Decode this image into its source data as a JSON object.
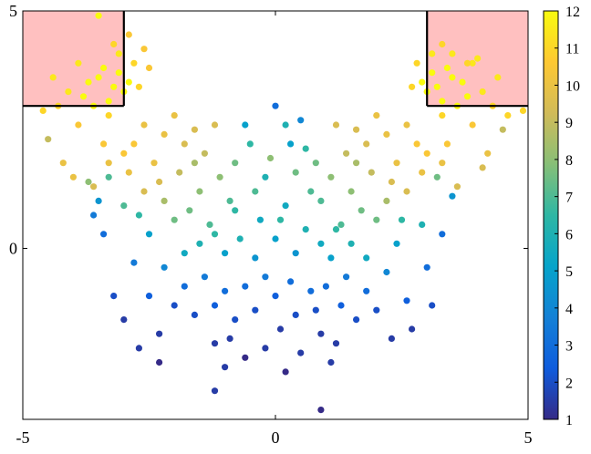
{
  "chart_data": {
    "type": "scatter",
    "title": "",
    "xlabel": "",
    "ylabel": "",
    "xlim": [
      -5,
      5
    ],
    "ylim": [
      -3.6,
      5
    ],
    "xticks": [
      -5,
      0,
      5
    ],
    "yticks": [
      0,
      5
    ],
    "xtick_labels": [
      "-5",
      "0",
      "5"
    ],
    "ytick_labels": [
      "0",
      "5"
    ],
    "grid": false,
    "regions": [
      {
        "x": [
          -5,
          -3
        ],
        "y": [
          3,
          5
        ],
        "fill": "#ffc0c0",
        "edge": "#000000"
      },
      {
        "x": [
          3,
          5
        ],
        "y": [
          3,
          5
        ],
        "fill": "#ffc0c0",
        "edge": "#000000"
      }
    ],
    "colorbar": {
      "min": 1,
      "max": 12,
      "ticks": [
        1,
        2,
        3,
        4,
        5,
        6,
        7,
        8,
        9,
        10,
        11,
        12
      ],
      "tick_labels": [
        "1",
        "2",
        "3",
        "4",
        "5",
        "6",
        "7",
        "8",
        "9",
        "10",
        "11",
        "12"
      ],
      "colormap": "parula",
      "colormap_stops": [
        "#352a87",
        "#0f5cdd",
        "#1481d6",
        "#06a4ca",
        "#2eb7a4",
        "#87bf77",
        "#d1bb59",
        "#fec832",
        "#f9fb0e"
      ]
    },
    "points": [
      [
        -3.2,
        3.4,
        12
      ],
      [
        -3.5,
        3.6,
        12
      ],
      [
        -3.0,
        3.3,
        12
      ],
      [
        -3.8,
        3.2,
        12
      ],
      [
        -3.4,
        3.8,
        12
      ],
      [
        -2.9,
        3.5,
        12
      ],
      [
        -3.6,
        3.0,
        12
      ],
      [
        -3.3,
        3.1,
        12
      ],
      [
        -3.7,
        3.5,
        12
      ],
      [
        -3.1,
        3.7,
        12
      ],
      [
        -4.1,
        3.3,
        11.5
      ],
      [
        -3.9,
        3.9,
        11.5
      ],
      [
        -4.3,
        3.0,
        11
      ],
      [
        -4.6,
        2.9,
        11
      ],
      [
        -3.1,
        4.1,
        11.5
      ],
      [
        -3.5,
        4.9,
        12
      ],
      [
        -2.8,
        3.9,
        11
      ],
      [
        -2.7,
        3.4,
        11
      ],
      [
        -3.3,
        2.8,
        11
      ],
      [
        -4.4,
        3.6,
        11.5
      ],
      [
        -3.2,
        4.3,
        11
      ],
      [
        -2.9,
        4.5,
        10.5
      ],
      [
        -2.6,
        4.2,
        10.5
      ],
      [
        -2.5,
        3.8,
        10.5
      ],
      [
        3.2,
        3.4,
        12
      ],
      [
        3.5,
        3.6,
        12
      ],
      [
        3.0,
        3.3,
        12
      ],
      [
        3.8,
        3.2,
        12
      ],
      [
        3.4,
        3.8,
        12
      ],
      [
        2.9,
        3.5,
        12
      ],
      [
        3.6,
        3.0,
        12
      ],
      [
        3.3,
        3.1,
        12
      ],
      [
        3.7,
        3.5,
        12
      ],
      [
        3.1,
        3.7,
        12
      ],
      [
        4.1,
        3.3,
        11.5
      ],
      [
        3.9,
        3.9,
        11.5
      ],
      [
        4.3,
        3.0,
        11
      ],
      [
        4.6,
        2.8,
        11
      ],
      [
        3.1,
        4.1,
        11.5
      ],
      [
        3.3,
        4.3,
        11
      ],
      [
        2.8,
        3.9,
        11
      ],
      [
        2.7,
        3.4,
        11
      ],
      [
        3.3,
        2.8,
        11
      ],
      [
        4.4,
        3.6,
        11.5
      ],
      [
        3.8,
        3.9,
        11
      ],
      [
        3.5,
        4.1,
        11.5
      ],
      [
        4.9,
        2.9,
        11
      ],
      [
        4.0,
        4.0,
        11.5
      ],
      [
        -2.6,
        2.6,
        10
      ],
      [
        -2.2,
        2.4,
        10
      ],
      [
        -2.8,
        2.2,
        10.5
      ],
      [
        -2.0,
        2.8,
        10
      ],
      [
        -1.8,
        2.2,
        9.5
      ],
      [
        -2.4,
        1.8,
        10
      ],
      [
        -1.6,
        2.5,
        9.5
      ],
      [
        -2.9,
        1.6,
        10
      ],
      [
        -2.3,
        1.4,
        9.5
      ],
      [
        -1.9,
        1.6,
        9
      ],
      [
        -2.6,
        1.2,
        9.5
      ],
      [
        -3.0,
        2.0,
        10.5
      ],
      [
        -3.3,
        1.8,
        10
      ],
      [
        -3.6,
        1.3,
        9.5
      ],
      [
        -1.4,
        2.0,
        9
      ],
      [
        -1.2,
        2.6,
        9.5
      ],
      [
        2.6,
        2.6,
        10
      ],
      [
        2.2,
        2.4,
        10
      ],
      [
        2.8,
        2.2,
        10.5
      ],
      [
        2.0,
        2.8,
        10
      ],
      [
        1.8,
        2.2,
        9.5
      ],
      [
        2.4,
        1.8,
        10
      ],
      [
        1.6,
        2.5,
        9.5
      ],
      [
        2.9,
        1.6,
        10
      ],
      [
        2.3,
        1.4,
        9.5
      ],
      [
        1.9,
        1.6,
        9
      ],
      [
        2.6,
        1.2,
        9.5
      ],
      [
        3.0,
        2.0,
        10.5
      ],
      [
        3.3,
        1.8,
        10
      ],
      [
        3.6,
        1.3,
        9.5
      ],
      [
        1.4,
        2.0,
        9
      ],
      [
        1.2,
        2.6,
        9.5
      ],
      [
        -1.5,
        1.2,
        8
      ],
      [
        -1.1,
        1.5,
        8
      ],
      [
        -0.8,
        1.8,
        7.5
      ],
      [
        -1.7,
        0.8,
        7.5
      ],
      [
        -1.3,
        0.5,
        7
      ],
      [
        -0.9,
        1.0,
        7
      ],
      [
        -2.0,
        0.6,
        7.5
      ],
      [
        -2.2,
        1.0,
        8.5
      ],
      [
        1.5,
        1.2,
        8
      ],
      [
        1.1,
        1.5,
        8
      ],
      [
        0.8,
        1.8,
        7.5
      ],
      [
        1.7,
        0.8,
        7.5
      ],
      [
        1.3,
        0.5,
        7
      ],
      [
        0.9,
        1.0,
        7
      ],
      [
        2.0,
        0.6,
        7.5
      ],
      [
        2.2,
        1.0,
        8.5
      ],
      [
        -0.5,
        2.2,
        6.5
      ],
      [
        0.2,
        2.6,
        6
      ],
      [
        0.6,
        2.1,
        6.5
      ],
      [
        -0.2,
        1.5,
        6
      ],
      [
        0.0,
        3.0,
        3
      ],
      [
        0.3,
        2.2,
        5
      ],
      [
        -0.6,
        2.6,
        5
      ],
      [
        0.5,
        2.7,
        4
      ],
      [
        -0.3,
        0.6,
        5.5
      ],
      [
        0.2,
        0.9,
        5.5
      ],
      [
        0.6,
        0.4,
        6
      ],
      [
        -0.7,
        0.2,
        6
      ],
      [
        0.0,
        0.2,
        5
      ],
      [
        0.4,
        -0.1,
        4.5
      ],
      [
        -0.4,
        -0.2,
        4.5
      ],
      [
        0.9,
        0.1,
        5.5
      ],
      [
        -1.0,
        -0.1,
        5
      ],
      [
        1.1,
        -0.2,
        5
      ],
      [
        -1.5,
        0.1,
        6
      ],
      [
        1.5,
        0.1,
        6
      ],
      [
        -1.8,
        -0.1,
        5.5
      ],
      [
        1.8,
        -0.2,
        5.5
      ],
      [
        -1.2,
        0.3,
        6.5
      ],
      [
        1.2,
        0.4,
        6.5
      ],
      [
        -0.2,
        -0.6,
        3.5
      ],
      [
        0.3,
        -0.7,
        3
      ],
      [
        -0.6,
        -0.8,
        3
      ],
      [
        0.7,
        -0.9,
        3
      ],
      [
        0.0,
        -1.0,
        2.5
      ],
      [
        -1.0,
        -0.9,
        3
      ],
      [
        1.0,
        -0.8,
        3
      ],
      [
        -1.4,
        -0.6,
        3.5
      ],
      [
        1.4,
        -0.6,
        3.5
      ],
      [
        -0.4,
        -1.3,
        2
      ],
      [
        0.4,
        -1.4,
        2
      ],
      [
        -0.8,
        -1.5,
        2
      ],
      [
        0.8,
        -1.3,
        2
      ],
      [
        0.1,
        -1.7,
        1.5
      ],
      [
        -1.2,
        -1.2,
        2.5
      ],
      [
        1.3,
        -1.2,
        2.5
      ],
      [
        -1.8,
        -0.8,
        3
      ],
      [
        1.8,
        -0.9,
        3
      ],
      [
        -2.2,
        -0.4,
        4
      ],
      [
        2.2,
        -0.5,
        4
      ],
      [
        -0.9,
        -1.9,
        1.5
      ],
      [
        0.9,
        -1.8,
        1.5
      ],
      [
        -0.2,
        -2.1,
        1.5
      ],
      [
        0.5,
        -2.2,
        1.5
      ],
      [
        -1.6,
        -1.4,
        2
      ],
      [
        1.6,
        -1.5,
        2
      ],
      [
        -2.0,
        -1.2,
        2
      ],
      [
        2.0,
        -1.3,
        2
      ],
      [
        -2.5,
        -1.0,
        2.5
      ],
      [
        2.6,
        -1.1,
        2.5
      ],
      [
        -1.2,
        -2.0,
        1.5
      ],
      [
        1.2,
        -2.0,
        1.5
      ],
      [
        -2.3,
        -1.8,
        1.5
      ],
      [
        2.3,
        -1.9,
        1.5
      ],
      [
        -1.0,
        -2.5,
        1.5
      ],
      [
        1.1,
        -2.4,
        1.5
      ],
      [
        -0.6,
        -2.3,
        1
      ],
      [
        0.2,
        -2.6,
        1
      ],
      [
        -1.2,
        -3.0,
        1.5
      ],
      [
        0.9,
        -3.4,
        1
      ],
      [
        -2.3,
        -2.4,
        1
      ],
      [
        -2.7,
        -2.1,
        1.5
      ],
      [
        2.7,
        -1.7,
        1.5
      ],
      [
        3.1,
        -1.2,
        2
      ],
      [
        -3.2,
        -1.0,
        2
      ],
      [
        -3.0,
        -1.5,
        1.5
      ],
      [
        3.3,
        0.3,
        3
      ],
      [
        -3.4,
        0.3,
        3
      ],
      [
        -3.5,
        1.0,
        4.5
      ],
      [
        3.5,
        1.1,
        4.5
      ],
      [
        -3.6,
        0.7,
        3.5
      ],
      [
        3.0,
        -0.4,
        3
      ],
      [
        -2.8,
        -0.3,
        3.5
      ],
      [
        2.9,
        0.5,
        6
      ],
      [
        -3.0,
        0.9,
        7
      ],
      [
        -2.7,
        0.7,
        6.5
      ],
      [
        2.5,
        0.6,
        6.5
      ],
      [
        -2.5,
        0.3,
        5
      ],
      [
        2.4,
        0.1,
        5
      ],
      [
        -3.3,
        1.5,
        7
      ],
      [
        3.2,
        1.5,
        7.5
      ],
      [
        -4.0,
        1.5,
        10
      ],
      [
        -3.7,
        1.4,
        8
      ],
      [
        4.1,
        1.7,
        9.5
      ],
      [
        -0.8,
        0.8,
        6.5
      ],
      [
        0.7,
        1.2,
        7
      ],
      [
        -0.1,
        1.9,
        8
      ],
      [
        0.4,
        1.6,
        7.5
      ],
      [
        -0.4,
        1.2,
        7
      ],
      [
        0.1,
        0.6,
        6.5
      ],
      [
        -1.6,
        1.8,
        8.5
      ],
      [
        1.6,
        1.8,
        8.5
      ],
      [
        -4.5,
        2.3,
        9
      ],
      [
        4.5,
        2.5,
        9
      ],
      [
        -3.9,
        2.6,
        10.5
      ],
      [
        3.9,
        2.6,
        10.5
      ],
      [
        -3.4,
        2.2,
        10.5
      ],
      [
        3.4,
        2.2,
        10.5
      ],
      [
        -4.2,
        1.8,
        10
      ],
      [
        4.2,
        2.0,
        10
      ]
    ]
  },
  "axes": {
    "box_color": "#000000"
  }
}
